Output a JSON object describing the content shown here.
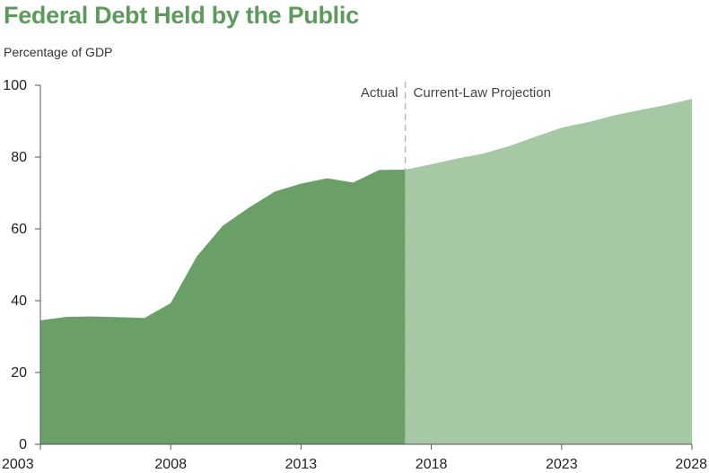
{
  "header": {
    "title": "Federal Debt Held by the Public",
    "ylabel": "Percentage of GDP"
  },
  "colors": {
    "title": "#5d9a5c",
    "actual_fill": "#6a9f67",
    "projection_fill": "#a6c8a4",
    "divider": "#b0b0b0"
  },
  "chart_data": {
    "type": "area",
    "title": "Federal Debt Held by the Public",
    "ylabel": "Percentage of GDP",
    "xlabel": "",
    "xlim": [
      2003,
      2028
    ],
    "ylim": [
      0,
      100
    ],
    "x_ticks": [
      2003,
      2008,
      2013,
      2018,
      2023,
      2028
    ],
    "y_ticks": [
      0,
      20,
      40,
      60,
      80,
      100
    ],
    "grid": false,
    "divider_x": 2017,
    "annotations": [
      {
        "text": "Actual",
        "side": "left-of-divider"
      },
      {
        "text": "Current-Law Projection",
        "side": "right-of-divider"
      }
    ],
    "series": [
      {
        "name": "Actual",
        "x": [
          2003,
          2004,
          2005,
          2006,
          2007,
          2008,
          2009,
          2010,
          2011,
          2012,
          2013,
          2014,
          2015,
          2016,
          2017
        ],
        "values": [
          34.5,
          35.5,
          35.6,
          35.4,
          35.2,
          39.3,
          52.3,
          60.9,
          65.9,
          70.4,
          72.6,
          74.1,
          72.9,
          76.4,
          76.5
        ]
      },
      {
        "name": "Current-Law Projection",
        "x": [
          2017,
          2018,
          2019,
          2020,
          2021,
          2022,
          2023,
          2024,
          2025,
          2026,
          2027,
          2028
        ],
        "values": [
          76.5,
          78.0,
          79.6,
          81.0,
          83.1,
          85.7,
          88.2,
          89.7,
          91.6,
          93.1,
          94.5,
          96.2
        ]
      }
    ]
  }
}
